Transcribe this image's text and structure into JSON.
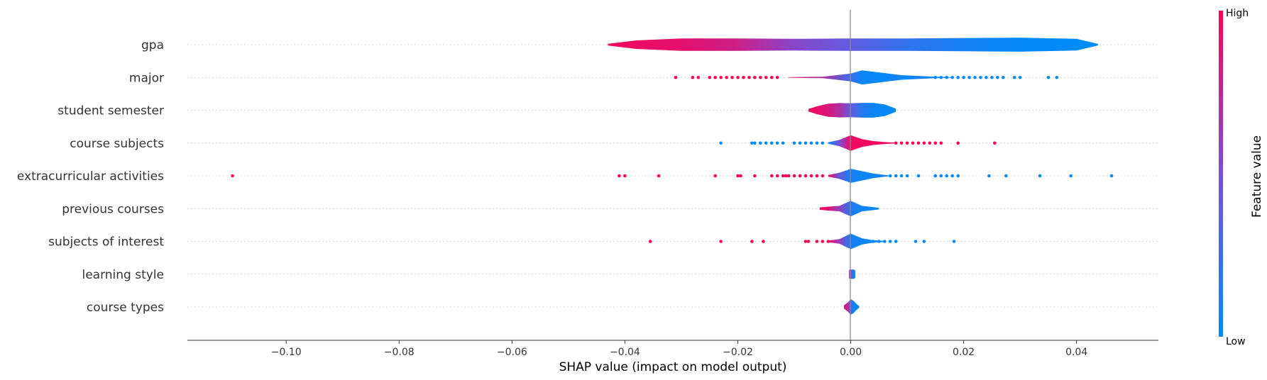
{
  "chart_data": {
    "type": "shap-violin-summary",
    "xlabel": "SHAP value (impact on model output)",
    "xlim": [
      -0.1175,
      0.0545
    ],
    "xticks": [
      {
        "value": -0.1,
        "label": "−0.10"
      },
      {
        "value": -0.08,
        "label": "−0.08"
      },
      {
        "value": -0.06,
        "label": "−0.06"
      },
      {
        "value": -0.04,
        "label": "−0.04"
      },
      {
        "value": -0.02,
        "label": "−0.02"
      },
      {
        "value": 0.0,
        "label": "0.00"
      },
      {
        "value": 0.02,
        "label": "0.02"
      },
      {
        "value": 0.04,
        "label": "0.04"
      }
    ],
    "colorbar": {
      "label": "Feature value",
      "high": "High",
      "low": "Low",
      "low_color": "#008bfb",
      "high_color": "#ff0052"
    },
    "features": [
      {
        "name": "gpa",
        "violin": [
          [
            -0.043,
            0.12,
            0.95
          ],
          [
            -0.038,
            0.55,
            0.93
          ],
          [
            -0.03,
            0.8,
            0.9
          ],
          [
            -0.02,
            0.8,
            0.8
          ],
          [
            -0.01,
            0.75,
            0.55
          ],
          [
            0.0,
            0.8,
            0.4
          ],
          [
            0.01,
            0.8,
            0.2
          ],
          [
            0.02,
            0.85,
            0.08
          ],
          [
            0.03,
            0.9,
            0.02
          ],
          [
            0.04,
            0.75,
            0.0
          ],
          [
            0.0438,
            0.1,
            0.0
          ]
        ],
        "points": []
      },
      {
        "name": "major",
        "violin": [
          [
            -0.011,
            0.03,
            0.9
          ],
          [
            -0.005,
            0.1,
            0.7
          ],
          [
            0.0,
            0.5,
            0.25
          ],
          [
            0.002,
            0.9,
            0.05
          ],
          [
            0.005,
            0.65,
            0.03
          ],
          [
            0.009,
            0.3,
            0.05
          ],
          [
            0.015,
            0.1,
            0.05
          ],
          [
            0.018,
            0.03,
            0.05
          ]
        ],
        "points": [
          [
            -0.031,
            1
          ],
          [
            -0.028,
            1
          ],
          [
            -0.027,
            1
          ],
          [
            -0.025,
            1
          ],
          [
            -0.024,
            1
          ],
          [
            -0.023,
            1
          ],
          [
            -0.022,
            1
          ],
          [
            -0.021,
            1
          ],
          [
            -0.02,
            1
          ],
          [
            -0.019,
            1
          ],
          [
            -0.018,
            1
          ],
          [
            -0.017,
            1
          ],
          [
            -0.016,
            1
          ],
          [
            -0.015,
            1
          ],
          [
            -0.014,
            1
          ],
          [
            -0.013,
            1
          ],
          [
            0.015,
            0
          ],
          [
            0.016,
            0
          ],
          [
            0.017,
            0
          ],
          [
            0.018,
            0
          ],
          [
            0.019,
            0
          ],
          [
            0.02,
            0
          ],
          [
            0.021,
            0
          ],
          [
            0.022,
            0
          ],
          [
            0.023,
            0
          ],
          [
            0.024,
            0
          ],
          [
            0.025,
            0
          ],
          [
            0.026,
            0
          ],
          [
            0.027,
            0
          ],
          [
            0.029,
            0
          ],
          [
            0.03,
            0
          ],
          [
            0.035,
            0
          ],
          [
            0.0365,
            0
          ]
        ]
      },
      {
        "name": "student semester",
        "violin": [
          [
            -0.0075,
            0.15,
            0.95
          ],
          [
            -0.006,
            0.5,
            0.92
          ],
          [
            -0.004,
            0.85,
            0.85
          ],
          [
            -0.002,
            0.92,
            0.7
          ],
          [
            0.0,
            0.9,
            0.4
          ],
          [
            0.002,
            0.95,
            0.15
          ],
          [
            0.004,
            0.95,
            0.05
          ],
          [
            0.006,
            0.75,
            0.02
          ],
          [
            0.008,
            0.2,
            0.0
          ]
        ],
        "points": []
      },
      {
        "name": "course subjects",
        "violin": [
          [
            -0.004,
            0.1,
            0.05
          ],
          [
            -0.002,
            0.4,
            0.5
          ],
          [
            0.0,
            1.0,
            0.95
          ],
          [
            0.002,
            0.5,
            0.95
          ],
          [
            0.004,
            0.25,
            0.95
          ],
          [
            0.006,
            0.12,
            0.95
          ],
          [
            0.008,
            0.04,
            0.95
          ]
        ],
        "points": [
          [
            -0.023,
            0
          ],
          [
            -0.0175,
            0
          ],
          [
            -0.017,
            0
          ],
          [
            -0.016,
            0
          ],
          [
            -0.015,
            0
          ],
          [
            -0.014,
            0
          ],
          [
            -0.013,
            0
          ],
          [
            -0.012,
            0
          ],
          [
            -0.01,
            0
          ],
          [
            -0.009,
            0
          ],
          [
            -0.008,
            0
          ],
          [
            -0.007,
            0
          ],
          [
            -0.006,
            0
          ],
          [
            -0.005,
            0
          ],
          [
            0.008,
            1
          ],
          [
            0.009,
            1
          ],
          [
            0.01,
            1
          ],
          [
            0.011,
            1
          ],
          [
            0.012,
            1
          ],
          [
            0.013,
            1
          ],
          [
            0.014,
            1
          ],
          [
            0.015,
            1
          ],
          [
            0.016,
            1
          ],
          [
            0.019,
            1
          ],
          [
            0.0255,
            1
          ]
        ]
      },
      {
        "name": "extracurricular activities",
        "violin": [
          [
            -0.004,
            0.1,
            0.95
          ],
          [
            -0.002,
            0.4,
            0.4
          ],
          [
            0.0,
            0.9,
            0.1
          ],
          [
            0.002,
            0.6,
            0.05
          ],
          [
            0.004,
            0.3,
            0.05
          ],
          [
            0.006,
            0.12,
            0.05
          ],
          [
            0.007,
            0.04,
            0.05
          ]
        ],
        "points": [
          [
            -0.1095,
            1
          ],
          [
            -0.041,
            1
          ],
          [
            -0.04,
            1
          ],
          [
            -0.034,
            1
          ],
          [
            -0.024,
            1
          ],
          [
            -0.02,
            1
          ],
          [
            -0.0195,
            1
          ],
          [
            -0.017,
            1
          ],
          [
            -0.014,
            1
          ],
          [
            -0.013,
            1
          ],
          [
            -0.012,
            1
          ],
          [
            -0.0115,
            1
          ],
          [
            -0.011,
            1
          ],
          [
            -0.01,
            1
          ],
          [
            -0.009,
            1
          ],
          [
            -0.008,
            1
          ],
          [
            -0.007,
            1
          ],
          [
            -0.006,
            1
          ],
          [
            -0.005,
            1
          ],
          [
            0.007,
            0
          ],
          [
            0.008,
            0
          ],
          [
            0.009,
            0
          ],
          [
            0.01,
            0
          ],
          [
            0.012,
            0
          ],
          [
            0.015,
            0
          ],
          [
            0.016,
            0
          ],
          [
            0.017,
            0
          ],
          [
            0.018,
            0
          ],
          [
            0.019,
            0
          ],
          [
            0.0245,
            0
          ],
          [
            0.0275,
            0
          ],
          [
            0.0335,
            0
          ],
          [
            0.039,
            0
          ],
          [
            0.0462,
            0
          ]
        ]
      },
      {
        "name": "previous courses",
        "violin": [
          [
            -0.0055,
            0.15,
            0.95
          ],
          [
            -0.004,
            0.25,
            0.9
          ],
          [
            -0.002,
            0.35,
            0.6
          ],
          [
            0.0,
            1.0,
            0.15
          ],
          [
            0.002,
            0.35,
            0.05
          ],
          [
            0.004,
            0.2,
            0.05
          ],
          [
            0.005,
            0.1,
            0.05
          ]
        ],
        "points": []
      },
      {
        "name": "subjects of interest",
        "violin": [
          [
            -0.004,
            0.1,
            0.95
          ],
          [
            -0.002,
            0.3,
            0.6
          ],
          [
            0.0,
            1.0,
            0.1
          ],
          [
            0.002,
            0.4,
            0.05
          ],
          [
            0.004,
            0.15,
            0.05
          ],
          [
            0.006,
            0.06,
            0.05
          ]
        ],
        "points": [
          [
            -0.0355,
            1
          ],
          [
            -0.023,
            1
          ],
          [
            -0.0175,
            1
          ],
          [
            -0.0155,
            1
          ],
          [
            -0.008,
            1
          ],
          [
            -0.0075,
            1
          ],
          [
            -0.006,
            1
          ],
          [
            -0.005,
            1
          ],
          [
            -0.004,
            1
          ],
          [
            0.003,
            0
          ],
          [
            0.004,
            0
          ],
          [
            0.005,
            0
          ],
          [
            0.006,
            0
          ],
          [
            0.007,
            0
          ],
          [
            0.008,
            0
          ],
          [
            0.0115,
            0
          ],
          [
            0.013,
            0
          ],
          [
            0.0183,
            0
          ]
        ]
      },
      {
        "name": "learning style",
        "violin": [
          [
            -0.0003,
            0.55,
            0.7
          ],
          [
            0.0002,
            0.6,
            0.3
          ],
          [
            0.0005,
            0.6,
            0.1
          ],
          [
            0.0008,
            0.5,
            0.05
          ]
        ],
        "points": []
      },
      {
        "name": "course types",
        "violin": [
          [
            -0.0012,
            0.2,
            0.95
          ],
          [
            -0.0005,
            0.6,
            0.7
          ],
          [
            0.0,
            1.0,
            0.3
          ],
          [
            0.0005,
            0.8,
            0.05
          ],
          [
            0.001,
            0.4,
            0.05
          ],
          [
            0.0015,
            0.1,
            0.05
          ]
        ],
        "points": []
      }
    ]
  }
}
